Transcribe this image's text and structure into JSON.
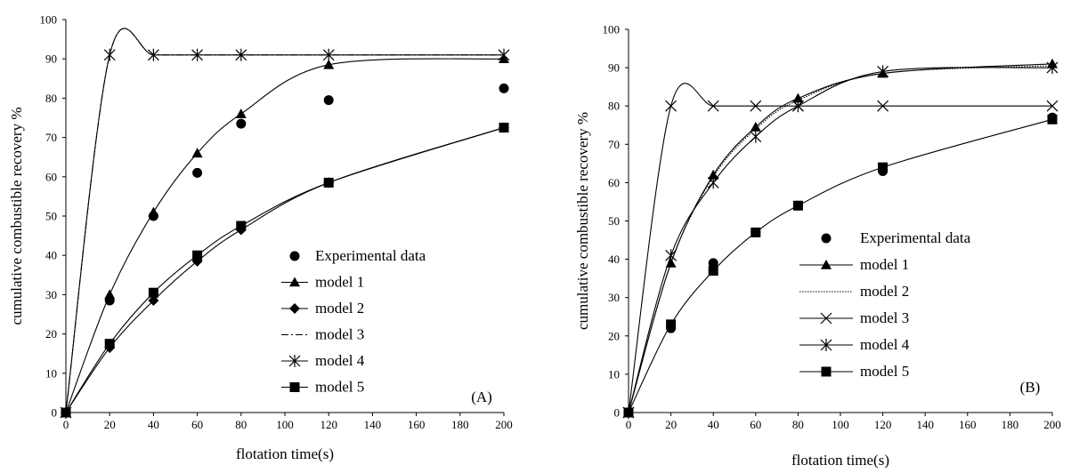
{
  "chart_data": [
    {
      "type": "line",
      "panel_label": "(A)",
      "xlabel": "flotation time(s)",
      "ylabel": "cumulative combustible recovery %",
      "xlim": [
        0,
        200
      ],
      "ylim": [
        0,
        100
      ],
      "x_ticks": [
        "0",
        "20",
        "40",
        "60",
        "80",
        "100",
        "120",
        "140",
        "160",
        "180",
        "200"
      ],
      "y_ticks": [
        "0",
        "10",
        "20",
        "30",
        "40",
        "50",
        "60",
        "70",
        "80",
        "90",
        "100"
      ],
      "legend_position": "lower-right",
      "grid": false,
      "series": [
        {
          "name": "Experimental data",
          "style": "points",
          "marker": "circle",
          "x": [
            0,
            20,
            40,
            60,
            80,
            120,
            200
          ],
          "y": [
            0,
            28.5,
            50,
            61,
            73.5,
            79.5,
            82.5
          ]
        },
        {
          "name": "model 1",
          "style": "curve",
          "marker": "triangle",
          "x": [
            0,
            20,
            40,
            60,
            80,
            120,
            200
          ],
          "y": [
            0,
            30,
            51,
            66,
            76,
            88.5,
            90
          ]
        },
        {
          "name": "model 2",
          "style": "curve",
          "marker": "diamond",
          "x": [
            0,
            20,
            40,
            60,
            80,
            120,
            200
          ],
          "y": [
            0,
            16.5,
            28.5,
            38.5,
            46.5,
            58.5,
            72.5
          ]
        },
        {
          "name": "model 3",
          "style": "dashdot",
          "marker": "none",
          "x": [
            0,
            20,
            40,
            60,
            80,
            120,
            200
          ],
          "y": [
            0,
            91,
            91,
            91,
            91,
            91,
            91
          ]
        },
        {
          "name": "model 4",
          "style": "curve",
          "marker": "asterisk",
          "x": [
            0,
            20,
            40,
            60,
            80,
            120,
            200
          ],
          "y": [
            0,
            91,
            91,
            91,
            91,
            91,
            91
          ]
        },
        {
          "name": "model 5",
          "style": "curve",
          "marker": "square",
          "x": [
            0,
            20,
            40,
            60,
            80,
            120,
            200
          ],
          "y": [
            0,
            17.5,
            30.5,
            40,
            47.5,
            58.5,
            72.5
          ]
        }
      ]
    },
    {
      "type": "line",
      "panel_label": "(B)",
      "xlabel": "flotation time(s)",
      "ylabel": "cumulative combustible recovery %",
      "xlim": [
        0,
        200
      ],
      "ylim": [
        0,
        100
      ],
      "x_ticks": [
        "0",
        "20",
        "40",
        "60",
        "80",
        "100",
        "120",
        "140",
        "160",
        "180",
        "200"
      ],
      "y_ticks": [
        "0",
        "10",
        "20",
        "30",
        "40",
        "50",
        "60",
        "70",
        "80",
        "90",
        "100"
      ],
      "legend_position": "lower-right",
      "grid": false,
      "series": [
        {
          "name": "Experimental data",
          "style": "points",
          "marker": "circle",
          "x": [
            0,
            20,
            40,
            60,
            80,
            120,
            200
          ],
          "y": [
            0,
            22,
            39,
            47,
            54,
            63,
            77
          ]
        },
        {
          "name": "model 1",
          "style": "curve",
          "marker": "triangle",
          "x": [
            0,
            20,
            40,
            60,
            80,
            120,
            200
          ],
          "y": [
            0,
            39,
            62,
            74.5,
            82,
            88.5,
            91
          ]
        },
        {
          "name": "model 2",
          "style": "dotted",
          "marker": "none",
          "x": [
            0,
            20,
            40,
            60,
            80,
            120,
            200
          ],
          "y": [
            0,
            39,
            61.5,
            74,
            81.5,
            88.5,
            90.5
          ]
        },
        {
          "name": "model 3",
          "style": "curve",
          "marker": "x",
          "x": [
            0,
            20,
            40,
            60,
            80,
            120,
            200
          ],
          "y": [
            0,
            80,
            80,
            80,
            80,
            80,
            80
          ]
        },
        {
          "name": "model 4",
          "style": "curve",
          "marker": "asterisk",
          "x": [
            0,
            20,
            40,
            60,
            80,
            120,
            200
          ],
          "y": [
            0,
            41,
            60,
            72,
            80,
            89,
            90
          ]
        },
        {
          "name": "model 5",
          "style": "curve",
          "marker": "square",
          "x": [
            0,
            20,
            40,
            60,
            80,
            120,
            200
          ],
          "y": [
            0,
            23,
            37,
            47,
            54,
            64,
            76.5
          ]
        }
      ]
    }
  ]
}
